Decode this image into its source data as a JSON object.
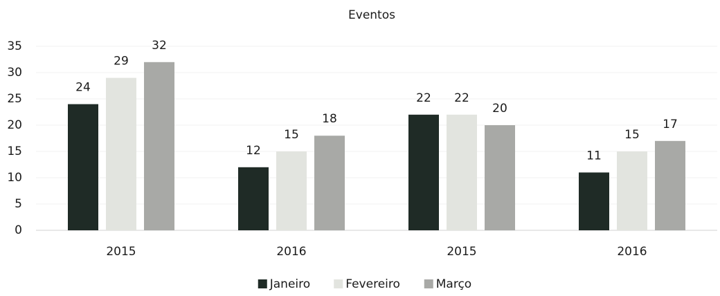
{
  "chart_data": {
    "type": "bar",
    "title": "Eventos",
    "categories": [
      "2015",
      "2016",
      "2015",
      "2016"
    ],
    "series": [
      {
        "name": "Janeiro",
        "color": "#1f2b26",
        "values": [
          24,
          12,
          22,
          11
        ]
      },
      {
        "name": "Fevereiro",
        "color": "#e2e4df",
        "values": [
          29,
          15,
          22,
          15
        ]
      },
      {
        "name": "Março",
        "color": "#a8a9a6",
        "values": [
          32,
          18,
          20,
          17
        ]
      }
    ],
    "ylim": [
      0,
      35
    ],
    "yticks": [
      0,
      5,
      10,
      15,
      20,
      25,
      30,
      35
    ],
    "grid": true,
    "legend": "bottom"
  }
}
